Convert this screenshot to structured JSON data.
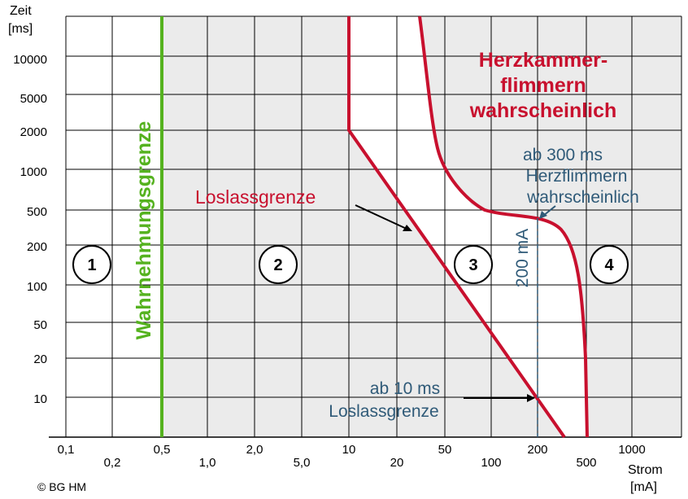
{
  "chart_data": {
    "type": "line",
    "y_axis": {
      "title_line1": "Zeit",
      "title_line2": "[ms]",
      "ticks": [
        "10000",
        "5000",
        "2000",
        "1000",
        "500",
        "200",
        "100",
        "50",
        "20",
        "10"
      ]
    },
    "x_axis": {
      "title_line1": "Strom",
      "title_line2": "[mA]",
      "ticks_row1": [
        "0,1",
        "0,5",
        "2,0",
        "10",
        "50",
        "200",
        "1000"
      ],
      "ticks_row2": [
        "0,2",
        "1,0",
        "5,0",
        "20",
        "100",
        "500"
      ]
    },
    "zones": [
      "1",
      "2",
      "3",
      "4"
    ],
    "series": [
      {
        "name": "Wahrnehmungsgrenze",
        "color": "#55b21f"
      },
      {
        "name": "Loslassgrenze",
        "color": "#c8102e"
      },
      {
        "name": "Herzkammerflimmern wahrscheinlich",
        "color": "#c8102e"
      }
    ],
    "annotations": {
      "herz_line1": "Herzkammer-",
      "herz_line2": "flimmern",
      "herz_line3": "wahrscheinlich",
      "loslass_label": "Loslassgrenze",
      "ab300_line1": "ab 300 ms",
      "ab300_line2": "Herzflimmern",
      "ab300_line3": "wahrscheinlich",
      "vline_label": "200 mA",
      "ab10_line1": "ab 10 ms",
      "ab10_line2": "Loslassgrenze",
      "copyright": "© BG HM"
    }
  }
}
